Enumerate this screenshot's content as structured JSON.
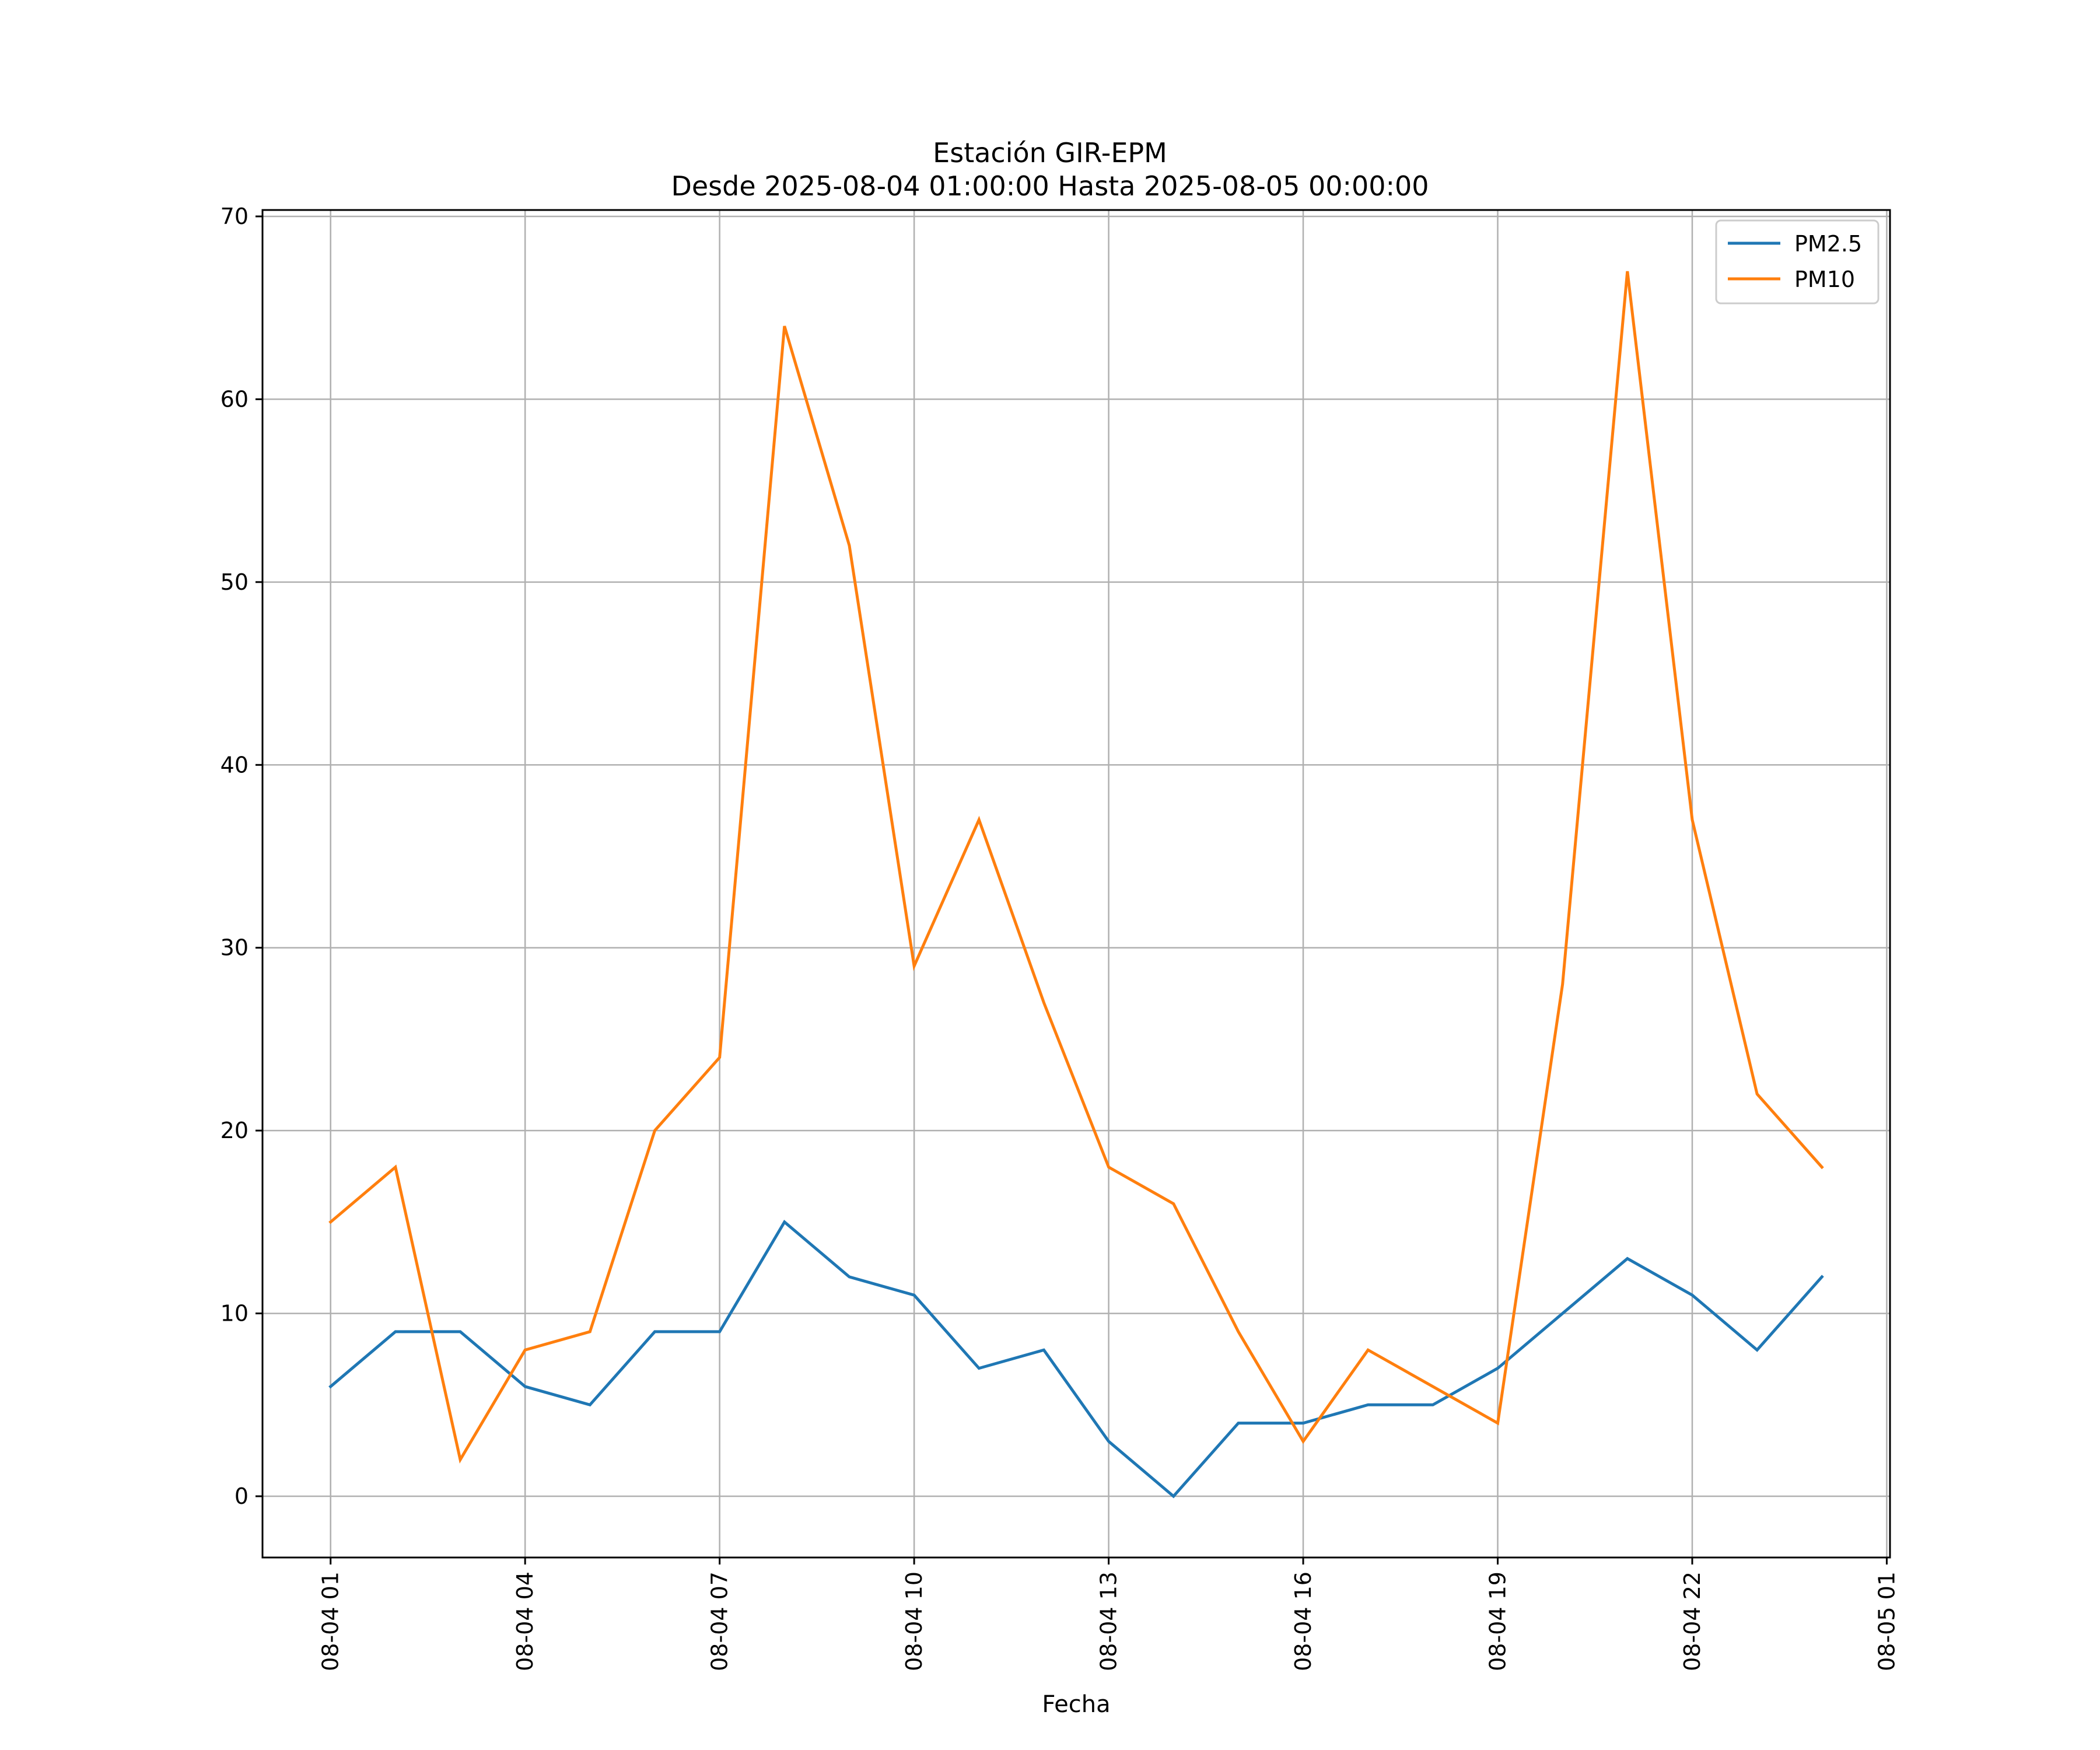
{
  "chart_data": {
    "type": "line",
    "title": "Estación GIR-EPM",
    "subtitle": "Desde 2025-08-04 01:00:00 Hasta 2025-08-05 00:00:00",
    "xlabel": "Fecha",
    "ylabel": "",
    "grid": true,
    "legend_position": "top-right",
    "x_unit": "hour",
    "x": [
      1,
      2,
      3,
      4,
      5,
      6,
      7,
      8,
      9,
      10,
      11,
      12,
      13,
      14,
      15,
      16,
      17,
      18,
      19,
      20,
      21,
      22,
      23,
      24
    ],
    "xlim": [
      -0.05,
      25.05
    ],
    "ylim": [
      -3.35,
      70.35
    ],
    "x_ticks": [
      {
        "value": 1,
        "label": "08-04 01"
      },
      {
        "value": 4,
        "label": "08-04 04"
      },
      {
        "value": 7,
        "label": "08-04 07"
      },
      {
        "value": 10,
        "label": "08-04 10"
      },
      {
        "value": 13,
        "label": "08-04 13"
      },
      {
        "value": 16,
        "label": "08-04 16"
      },
      {
        "value": 19,
        "label": "08-04 19"
      },
      {
        "value": 22,
        "label": "08-04 22"
      },
      {
        "value": 25,
        "label": "08-05 01"
      }
    ],
    "y_ticks": [
      {
        "value": 0,
        "label": "0"
      },
      {
        "value": 10,
        "label": "10"
      },
      {
        "value": 20,
        "label": "20"
      },
      {
        "value": 30,
        "label": "30"
      },
      {
        "value": 40,
        "label": "40"
      },
      {
        "value": 50,
        "label": "50"
      },
      {
        "value": 60,
        "label": "60"
      },
      {
        "value": 70,
        "label": "70"
      }
    ],
    "series": [
      {
        "name": "PM2.5",
        "color": "#1f77b4",
        "values": [
          6,
          9,
          9,
          6,
          5,
          9,
          9,
          15,
          12,
          11,
          7,
          8,
          3,
          0,
          4,
          4,
          5,
          5,
          7,
          10,
          13,
          11,
          8,
          12
        ]
      },
      {
        "name": "PM10",
        "color": "#ff7f0e",
        "values": [
          15,
          18,
          2,
          8,
          9,
          20,
          24,
          64,
          52,
          29,
          37,
          27,
          18,
          16,
          9,
          3,
          8,
          6,
          4,
          28,
          67,
          37,
          22,
          18
        ]
      }
    ]
  }
}
